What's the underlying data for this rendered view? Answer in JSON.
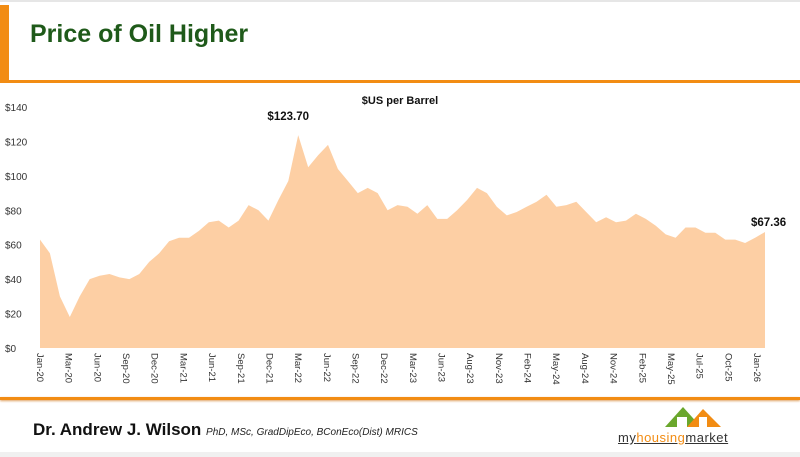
{
  "slide": {
    "title": "Price of Oil Higher",
    "author": "Dr. Andrew J. Wilson",
    "credentials": "PhD, MSc, GradDipEco, BConEco(Dist) MRICS",
    "logo": {
      "part1": "my",
      "part2": "housing",
      "part3": "market"
    },
    "accent_color": "#f28c13",
    "title_color": "#1f5a1a"
  },
  "chart_data": {
    "type": "area",
    "title": "$US per Barrel",
    "fill_color": "#fdcfa4",
    "ylim": [
      0,
      140
    ],
    "y_ticks": [
      "$0",
      "$20",
      "$40",
      "$60",
      "$80",
      "$100",
      "$120",
      "$140"
    ],
    "x_tick_labels": [
      "Jan-20",
      "Mar-20",
      "Jun-20",
      "Sep-20",
      "Dec-20",
      "Mar-21",
      "Jun-21",
      "Sep-21",
      "Dec-21",
      "Mar-22",
      "Jun-22",
      "Sep-22",
      "Dec-22",
      "Mar-23",
      "Jun-23",
      "Aug-23",
      "Nov-23",
      "Feb-24",
      "May-24",
      "Aug-24",
      "Nov-24",
      "Feb-25",
      "May-25",
      "Jul-25",
      "Oct-25",
      "Jan-26"
    ],
    "x_start": "Jan-20",
    "x_end": "Feb-26",
    "values": [
      63,
      55,
      30,
      18,
      30,
      40,
      42,
      43,
      41,
      40,
      43,
      50,
      55,
      62,
      64,
      64,
      68,
      73,
      74,
      70,
      74,
      83,
      80,
      74,
      86,
      97,
      123.7,
      105,
      112,
      118,
      104,
      97,
      90,
      93,
      90,
      80,
      83,
      82,
      78,
      83,
      75,
      75,
      80,
      86,
      93,
      90,
      82,
      77,
      79,
      82,
      85,
      89,
      82,
      83,
      85,
      79,
      73,
      76,
      73,
      74,
      78,
      75,
      71,
      66,
      64,
      70,
      70,
      67,
      67,
      63,
      63,
      61,
      64,
      67.36
    ],
    "annotations": [
      {
        "label": "$123.70",
        "x": "Mar-22",
        "value": 123.7
      },
      {
        "label": "$67.36",
        "x": "Feb-26",
        "value": 67.36
      }
    ],
    "grid": false,
    "legend": "none"
  }
}
